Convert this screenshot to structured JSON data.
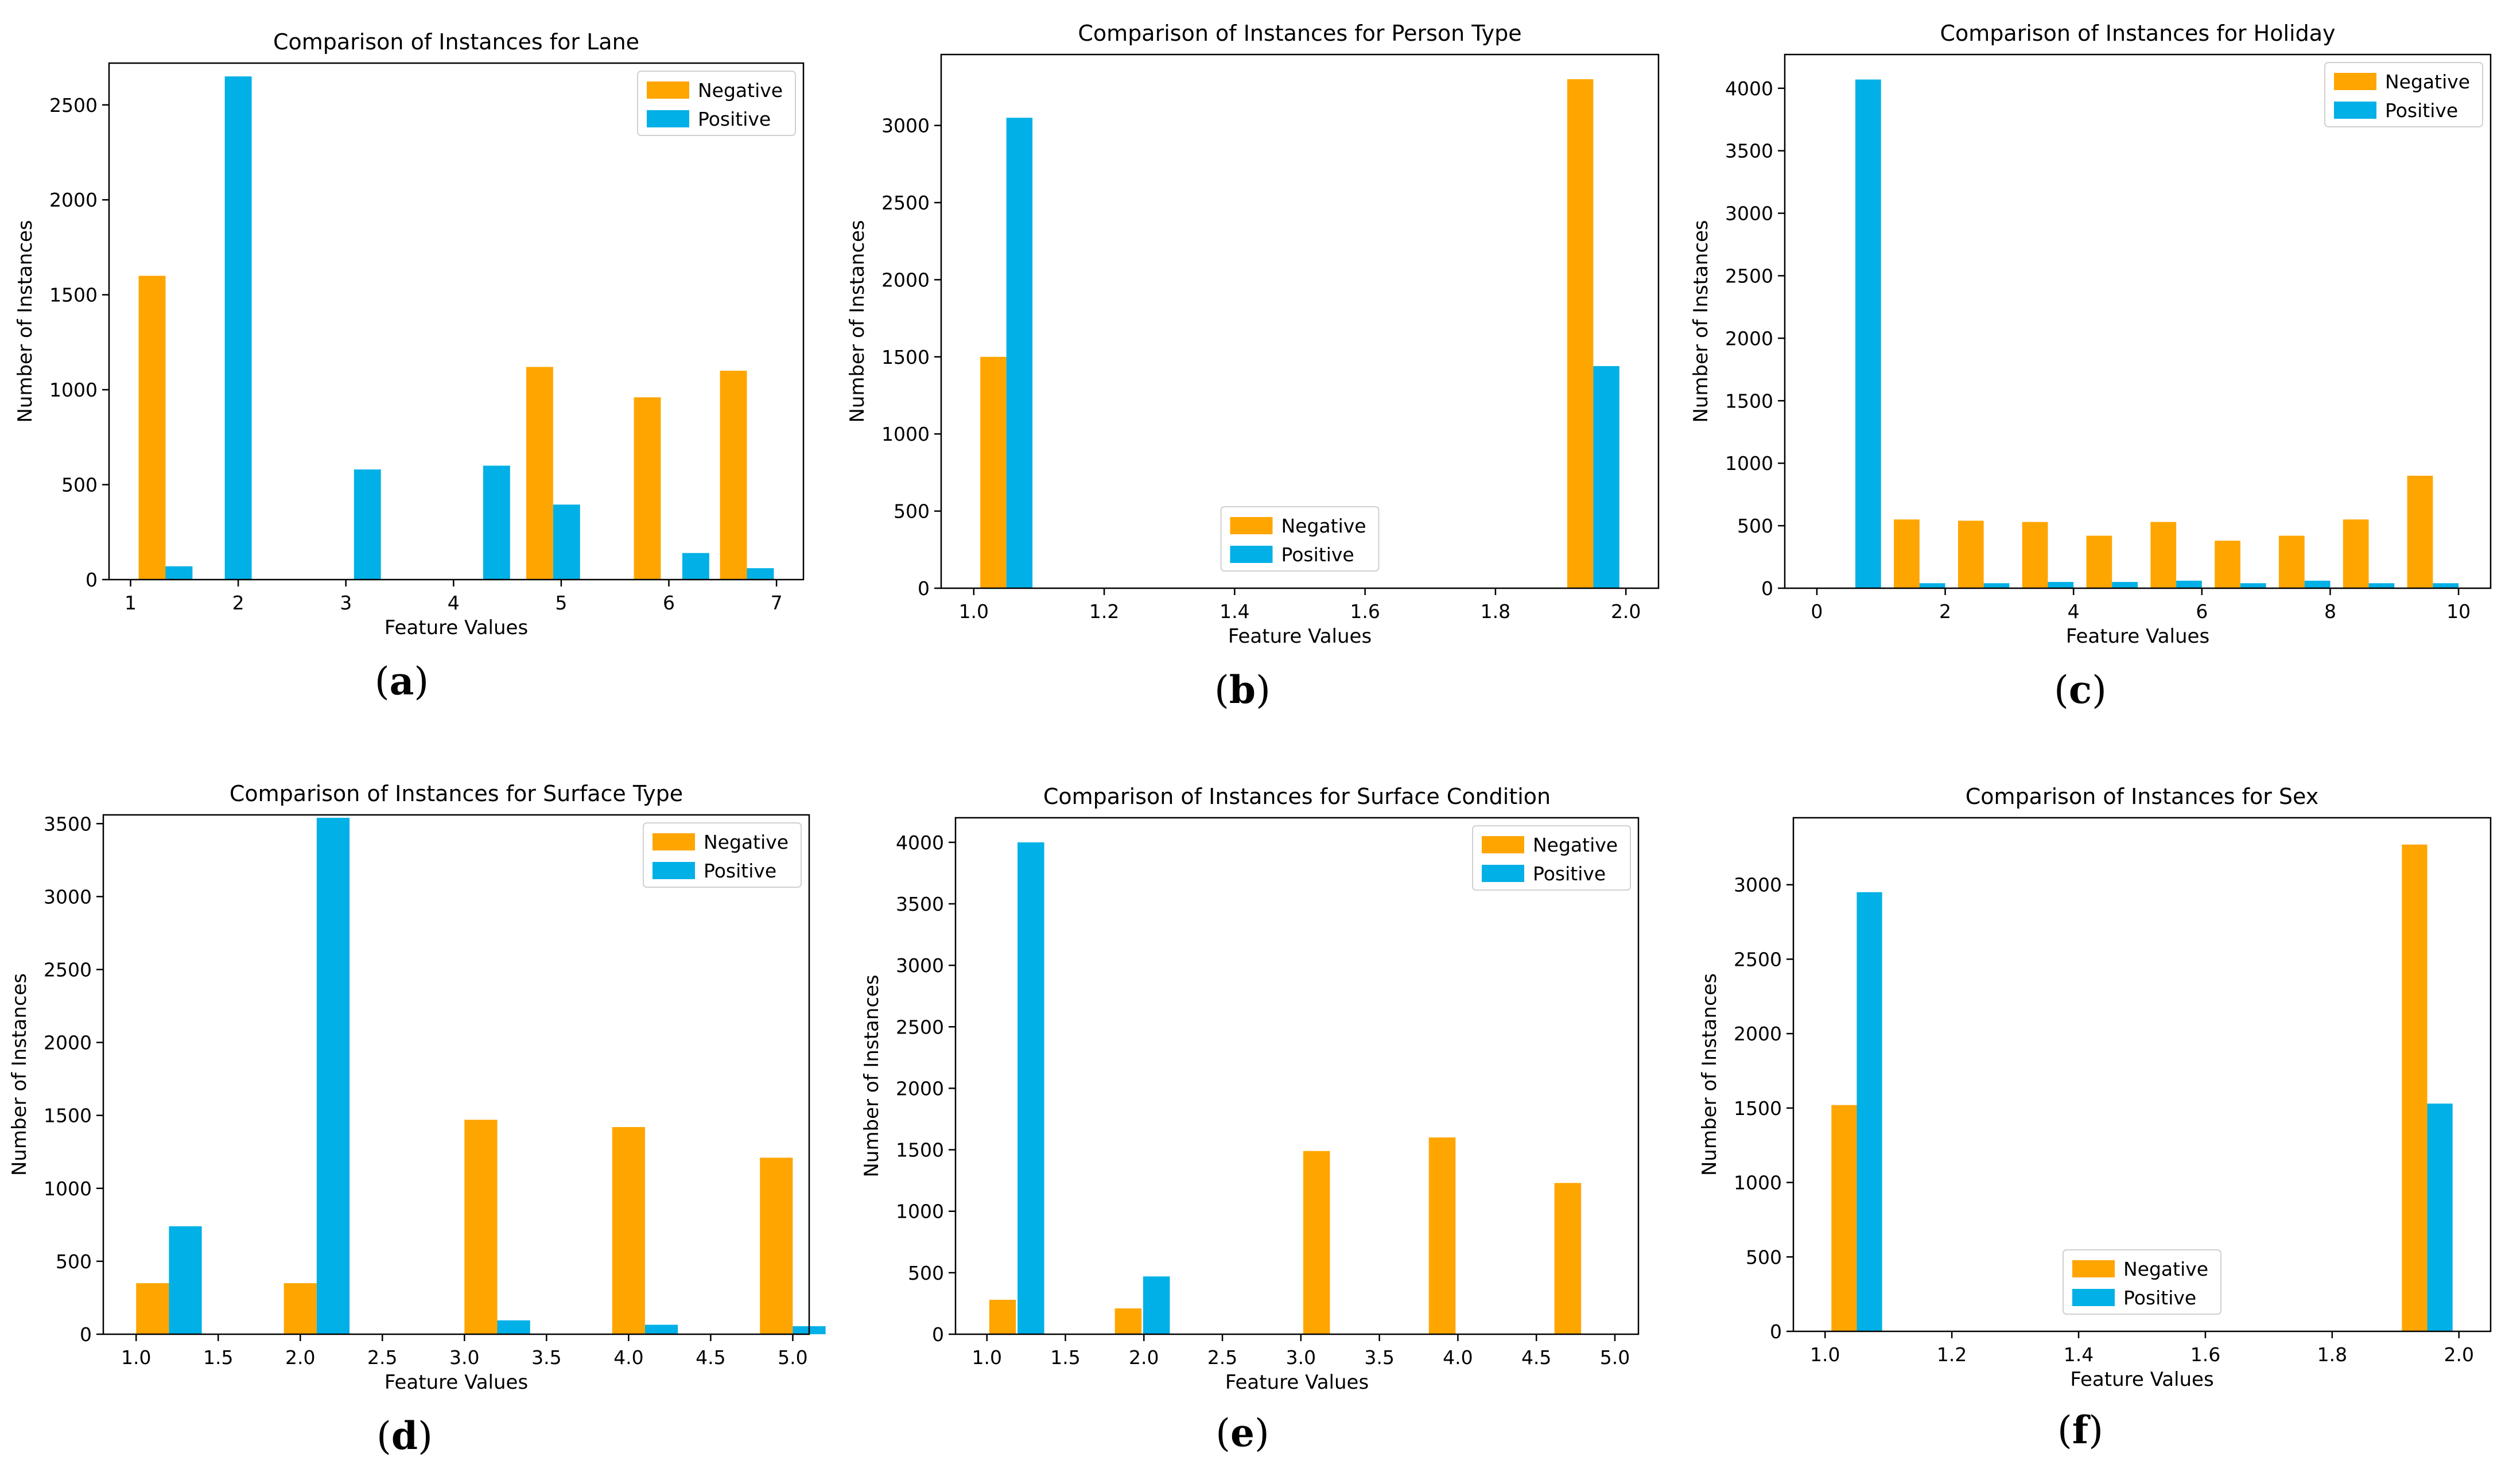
{
  "colors": {
    "negative": "#ffa500",
    "positive": "#00b0e6",
    "axis": "#000000"
  },
  "chart_data": [
    {
      "type": "bar",
      "panel_label": "a",
      "title": "Comparison of Instances for Lane",
      "xlabel": "Feature Values",
      "ylabel": "Number of Instances",
      "xlim": [
        0.8,
        7.25
      ],
      "ylim": [
        0,
        2720
      ],
      "xticks": [
        1,
        2,
        3,
        4,
        5,
        6,
        7
      ],
      "xtick_labels": [
        "1",
        "2",
        "3",
        "4",
        "5",
        "6",
        "7"
      ],
      "yticks": [
        0,
        500,
        1000,
        1500,
        2000,
        2500
      ],
      "ytick_labels": [
        "0",
        "500",
        "1000",
        "1500",
        "2000",
        "2500"
      ],
      "bar_width": 0.25,
      "legend_position": "top-right",
      "series": [
        {
          "name": "Negative",
          "x": [
            1.2,
            2.0,
            3.0,
            4.0,
            4.8,
            5.8,
            6.6
          ],
          "values": [
            1600,
            0,
            0,
            0,
            1120,
            960,
            1100
          ]
        },
        {
          "name": "Positive",
          "x": [
            1.45,
            2.0,
            3.2,
            4.4,
            5.05,
            6.25,
            6.85
          ],
          "values": [
            70,
            2650,
            580,
            600,
            395,
            140,
            60
          ]
        }
      ]
    },
    {
      "type": "bar",
      "panel_label": "b",
      "title": "Comparison of Instances for Person Type",
      "xlabel": "Feature Values",
      "ylabel": "Number of Instances",
      "xlim": [
        0.95,
        2.05
      ],
      "ylim": [
        0,
        3460
      ],
      "xticks": [
        1.0,
        1.2,
        1.4,
        1.6,
        1.8,
        2.0
      ],
      "xtick_labels": [
        "1.0",
        "1.2",
        "1.4",
        "1.6",
        "1.8",
        "2.0"
      ],
      "yticks": [
        0,
        500,
        1000,
        1500,
        2000,
        2500,
        3000
      ],
      "ytick_labels": [
        "0",
        "500",
        "1000",
        "1500",
        "2000",
        "2500",
        "3000"
      ],
      "bar_width": 0.04,
      "legend_position": "bottom-center",
      "series": [
        {
          "name": "Negative",
          "x": [
            1.03,
            1.93
          ],
          "values": [
            1500,
            3300
          ]
        },
        {
          "name": "Positive",
          "x": [
            1.07,
            1.97
          ],
          "values": [
            3050,
            1440
          ]
        }
      ]
    },
    {
      "type": "bar",
      "panel_label": "c",
      "title": "Comparison of Instances for Holiday",
      "xlabel": "Feature Values",
      "ylabel": "Number of Instances",
      "xlim": [
        -0.5,
        10.5
      ],
      "ylim": [
        0,
        4270
      ],
      "xticks": [
        0,
        2,
        4,
        6,
        8,
        10
      ],
      "xtick_labels": [
        "0",
        "2",
        "4",
        "6",
        "8",
        "10"
      ],
      "yticks": [
        0,
        500,
        1000,
        1500,
        2000,
        2500,
        3000,
        3500,
        4000
      ],
      "ytick_labels": [
        "0",
        "500",
        "1000",
        "1500",
        "2000",
        "2500",
        "3000",
        "3500",
        "4000"
      ],
      "bar_width": 0.4,
      "legend_position": "top-right",
      "series": [
        {
          "name": "Negative",
          "x": [
            0.4,
            1.4,
            2.4,
            3.4,
            4.4,
            5.4,
            6.4,
            7.4,
            8.4,
            9.4
          ],
          "values": [
            0,
            550,
            540,
            530,
            420,
            530,
            380,
            420,
            550,
            900
          ]
        },
        {
          "name": "Positive",
          "x": [
            0.8,
            1.8,
            2.8,
            3.8,
            4.8,
            5.8,
            6.8,
            7.8,
            8.8,
            9.8
          ],
          "values": [
            4070,
            40,
            40,
            50,
            50,
            60,
            40,
            60,
            40,
            40
          ]
        }
      ]
    },
    {
      "type": "bar",
      "panel_label": "d",
      "title": "Comparison of Instances for Surface Type",
      "xlabel": "Feature Values",
      "ylabel": "Number of Instances",
      "xlim": [
        0.8,
        5.1
      ],
      "ylim": [
        0,
        3560
      ],
      "xticks": [
        1.0,
        1.5,
        2.0,
        2.5,
        3.0,
        3.5,
        4.0,
        4.5,
        5.0
      ],
      "xtick_labels": [
        "1.0",
        "1.5",
        "2.0",
        "2.5",
        "3.0",
        "3.5",
        "4.0",
        "4.5",
        "5.0"
      ],
      "yticks": [
        0,
        500,
        1000,
        1500,
        2000,
        2500,
        3000,
        3500
      ],
      "ytick_labels": [
        "0",
        "500",
        "1000",
        "1500",
        "2000",
        "2500",
        "3000",
        "3500"
      ],
      "bar_width": 0.2,
      "legend_position": "top-right",
      "series": [
        {
          "name": "Negative",
          "x": [
            1.1,
            2.0,
            3.1,
            4.0,
            4.9
          ],
          "values": [
            350,
            350,
            1470,
            1420,
            1210
          ]
        },
        {
          "name": "Positive",
          "x": [
            1.3,
            2.2,
            3.3,
            4.2,
            5.1
          ],
          "values": [
            740,
            3540,
            95,
            65,
            55
          ]
        }
      ]
    },
    {
      "type": "bar",
      "panel_label": "e",
      "title": "Comparison of Instances for Surface Condition",
      "xlabel": "Feature Values",
      "ylabel": "Number of Instances",
      "xlim": [
        0.8,
        5.15
      ],
      "ylim": [
        0,
        4200
      ],
      "xticks": [
        1.0,
        1.5,
        2.0,
        2.5,
        3.0,
        3.5,
        4.0,
        4.5,
        5.0
      ],
      "xtick_labels": [
        "1.0",
        "1.5",
        "2.0",
        "2.5",
        "3.0",
        "3.5",
        "4.0",
        "4.5",
        "5.0"
      ],
      "yticks": [
        0,
        500,
        1000,
        1500,
        2000,
        2500,
        3000,
        3500,
        4000
      ],
      "ytick_labels": [
        "0",
        "500",
        "1000",
        "1500",
        "2000",
        "2500",
        "3000",
        "3500",
        "4000"
      ],
      "bar_width": 0.17,
      "legend_position": "top-right",
      "series": [
        {
          "name": "Negative",
          "x": [
            1.1,
            1.9,
            3.1,
            3.9,
            4.7
          ],
          "values": [
            280,
            210,
            1490,
            1600,
            1230
          ]
        },
        {
          "name": "Positive",
          "x": [
            1.28,
            2.08
          ],
          "values": [
            4000,
            470
          ]
        }
      ]
    },
    {
      "type": "bar",
      "panel_label": "f",
      "title": "Comparison of Instances for Sex",
      "xlabel": "Feature Values",
      "ylabel": "Number of Instances",
      "xlim": [
        0.95,
        2.05
      ],
      "ylim": [
        0,
        3450
      ],
      "xticks": [
        1.0,
        1.2,
        1.4,
        1.6,
        1.8,
        2.0
      ],
      "xtick_labels": [
        "1.0",
        "1.2",
        "1.4",
        "1.6",
        "1.8",
        "2.0"
      ],
      "yticks": [
        0,
        500,
        1000,
        1500,
        2000,
        2500,
        3000
      ],
      "ytick_labels": [
        "0",
        "500",
        "1000",
        "1500",
        "2000",
        "2500",
        "3000"
      ],
      "bar_width": 0.04,
      "legend_position": "bottom-center",
      "series": [
        {
          "name": "Negative",
          "x": [
            1.03,
            1.93
          ],
          "values": [
            1520,
            3270
          ]
        },
        {
          "name": "Positive",
          "x": [
            1.07,
            1.97
          ],
          "values": [
            2950,
            1530
          ]
        }
      ]
    }
  ]
}
